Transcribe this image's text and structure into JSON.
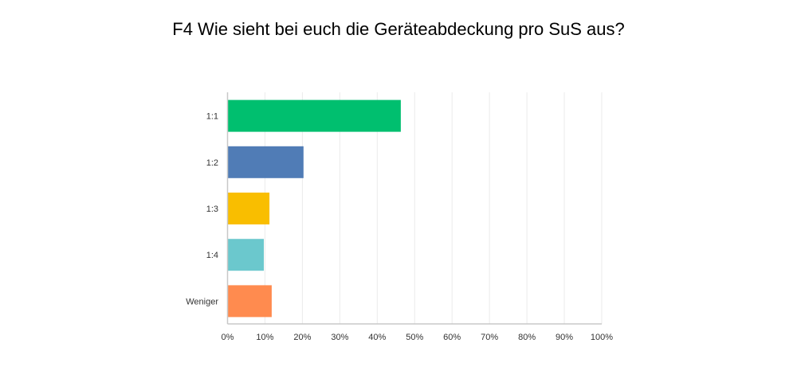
{
  "chart_data": {
    "type": "bar",
    "orientation": "horizontal",
    "title": "F4 Wie sieht bei euch die Geräteabdeckung pro SuS aus?",
    "categories": [
      "1:1",
      "1:2",
      "1:3",
      "1:4",
      "Weniger"
    ],
    "values": [
      46.3,
      20.3,
      11.2,
      9.7,
      11.8
    ],
    "colors": [
      "#00bf6f",
      "#507cb6",
      "#f9be00",
      "#6bc8cd",
      "#ff8b4f"
    ],
    "xlim": [
      0,
      100
    ],
    "xticks": [
      "0%",
      "10%",
      "20%",
      "30%",
      "40%",
      "50%",
      "60%",
      "70%",
      "80%",
      "90%",
      "100%"
    ],
    "grid": true,
    "xlabel": "",
    "ylabel": ""
  }
}
